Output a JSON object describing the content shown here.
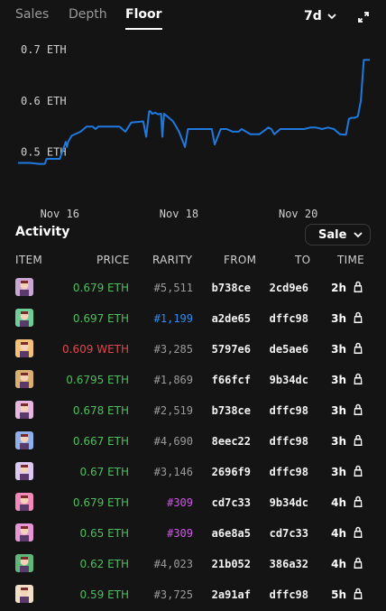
{
  "tabs": [
    {
      "label": "Sales",
      "active": false
    },
    {
      "label": "Depth",
      "active": false
    },
    {
      "label": "Floor",
      "active": true
    }
  ],
  "period": {
    "label": "7d",
    "icon": "chevron-down-icon"
  },
  "expand_icon": "expand-icon",
  "chart_data": {
    "type": "line",
    "title": "",
    "color": "#1f7ae0",
    "y_ticks": [
      "0.7 ETH",
      "0.6 ETH",
      "0.5 ETH"
    ],
    "y_tick_values": [
      0.7,
      0.6,
      0.5
    ],
    "x_ticks": [
      "Nov 16",
      "Nov 18",
      "Nov 20"
    ],
    "x_tick_values": [
      16,
      18,
      20
    ],
    "xlim": [
      15.3,
      21.2
    ],
    "ylim": [
      0.42,
      0.73
    ],
    "x": [
      15.3,
      15.5,
      15.65,
      15.75,
      15.78,
      15.82,
      16.0,
      16.1,
      16.12,
      16.14,
      16.2,
      16.35,
      16.45,
      16.55,
      16.6,
      16.65,
      16.8,
      17.0,
      17.1,
      17.2,
      17.4,
      17.45,
      17.5,
      17.52,
      17.55,
      17.6,
      17.65,
      17.7,
      17.72,
      17.75,
      17.8,
      17.9,
      18.0,
      18.05,
      18.1,
      18.15,
      18.3,
      18.4,
      18.55,
      18.6,
      18.7,
      18.8,
      18.9,
      19.0,
      19.05,
      19.2,
      19.35,
      19.5,
      19.55,
      19.6,
      19.7,
      19.8,
      19.9,
      20.0,
      20.1,
      20.2,
      20.3,
      20.4,
      20.5,
      20.6,
      20.7,
      20.8,
      20.85,
      20.9,
      20.95,
      21.0,
      21.05,
      21.1,
      21.15,
      21.2
    ],
    "y": [
      0.479,
      0.479,
      0.477,
      0.477,
      0.487,
      0.487,
      0.487,
      0.52,
      0.51,
      0.52,
      0.532,
      0.54,
      0.55,
      0.55,
      0.545,
      0.55,
      0.55,
      0.55,
      0.54,
      0.558,
      0.56,
      0.53,
      0.58,
      0.58,
      0.575,
      0.577,
      0.574,
      0.575,
      0.53,
      0.575,
      0.57,
      0.56,
      0.54,
      0.525,
      0.51,
      0.545,
      0.545,
      0.545,
      0.545,
      0.515,
      0.545,
      0.545,
      0.54,
      0.54,
      0.545,
      0.535,
      0.535,
      0.548,
      0.545,
      0.535,
      0.545,
      0.545,
      0.545,
      0.545,
      0.545,
      0.548,
      0.548,
      0.545,
      0.548,
      0.545,
      0.535,
      0.534,
      0.565,
      0.567,
      0.567,
      0.57,
      0.6,
      0.68,
      0.68,
      0.68
    ]
  },
  "activity": {
    "title": "Activity",
    "filter": {
      "label": "Sale",
      "icon": "chevron-down-icon"
    },
    "columns": [
      "ITEM",
      "PRICE",
      "RARITY",
      "FROM",
      "TO",
      "TIME"
    ],
    "rows": [
      {
        "thumb": "#c9a6d4",
        "price": "0.679 ETH",
        "price_color": "green",
        "rarity": "#5,511",
        "rarity_color": "gray",
        "from": "b738ce",
        "to": "2cd9e6",
        "time": "2h"
      },
      {
        "thumb": "#6fcf9a",
        "price": "0.697 ETH",
        "price_color": "green",
        "rarity": "#1,199",
        "rarity_color": "blue",
        "from": "a2de65",
        "to": "dffc98",
        "time": "3h"
      },
      {
        "thumb": "#f2c17a",
        "price": "0.609 WETH",
        "price_color": "red",
        "rarity": "#3,285",
        "rarity_color": "gray",
        "from": "5797e6",
        "to": "de5ae6",
        "time": "3h"
      },
      {
        "thumb": "#d9b070",
        "price": "0.6795 ETH",
        "price_color": "green",
        "rarity": "#1,869",
        "rarity_color": "gray",
        "from": "f66fcf",
        "to": "9b34dc",
        "time": "3h"
      },
      {
        "thumb": "#e6b8e0",
        "price": "0.678 ETH",
        "price_color": "green",
        "rarity": "#2,519",
        "rarity_color": "gray",
        "from": "b738ce",
        "to": "dffc98",
        "time": "3h"
      },
      {
        "thumb": "#8fb0e8",
        "price": "0.667 ETH",
        "price_color": "green",
        "rarity": "#4,690",
        "rarity_color": "gray",
        "from": "8eec22",
        "to": "dffc98",
        "time": "3h"
      },
      {
        "thumb": "#dcc8f0",
        "price": "0.67 ETH",
        "price_color": "green",
        "rarity": "#3,146",
        "rarity_color": "gray",
        "from": "2696f9",
        "to": "dffc98",
        "time": "3h"
      },
      {
        "thumb": "#f08ab8",
        "price": "0.679 ETH",
        "price_color": "green",
        "rarity": "#309",
        "rarity_color": "purple",
        "from": "cd7c33",
        "to": "9b34dc",
        "time": "4h"
      },
      {
        "thumb": "#e895d6",
        "price": "0.65 ETH",
        "price_color": "green",
        "rarity": "#309",
        "rarity_color": "purple",
        "from": "a6e8a5",
        "to": "cd7c33",
        "time": "4h"
      },
      {
        "thumb": "#5fb87a",
        "price": "0.62 ETH",
        "price_color": "green",
        "rarity": "#4,023",
        "rarity_color": "gray",
        "from": "21b052",
        "to": "386a32",
        "time": "4h"
      },
      {
        "thumb": "#f0e0c8",
        "price": "0.59 ETH",
        "price_color": "green",
        "rarity": "#3,725",
        "rarity_color": "gray",
        "from": "2a91af",
        "to": "dffc98",
        "time": "5h"
      }
    ]
  }
}
